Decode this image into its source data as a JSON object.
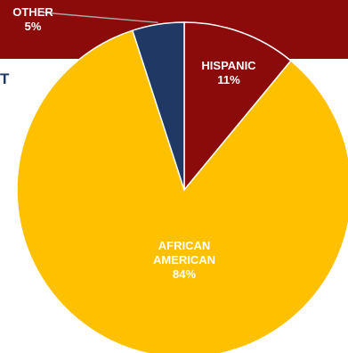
{
  "colors": {
    "banner": "#8b0a0a",
    "hispanic": "#8b0a0a",
    "african_american": "#ffc000",
    "other": "#203864",
    "slice_border": "#ffffff",
    "leader_line": "#a6a6a6",
    "side_text": "#1f3864"
  },
  "side_text": "T",
  "chart_data": {
    "type": "pie",
    "start_angle_deg": 0,
    "direction": "clockwise",
    "slices": [
      {
        "key": "hispanic",
        "name": "HISPANIC",
        "value": 11,
        "value_label": "11%"
      },
      {
        "key": "african_american",
        "name_lines": [
          "AFRICAN",
          "AMERICAN"
        ],
        "value": 84,
        "value_label": "84%"
      },
      {
        "key": "other",
        "name": "OTHER",
        "value": 5,
        "value_label": "5%"
      }
    ]
  }
}
